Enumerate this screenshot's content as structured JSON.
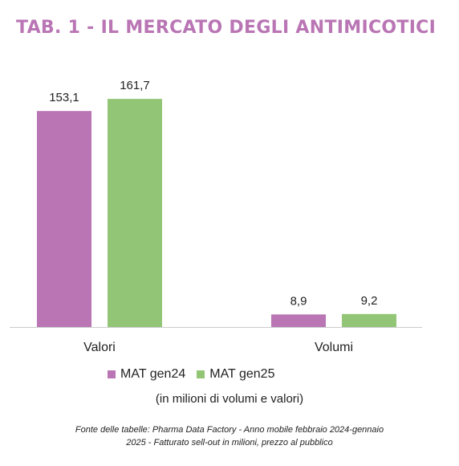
{
  "title": "TAB. 1 - IL MERCATO DEGLI ANTIMICOTICI",
  "colors": {
    "title": "#b975b4",
    "series_a": "#b975b4",
    "series_b": "#92c575",
    "axis": "#cccccc",
    "text": "#222222"
  },
  "chart_data": {
    "type": "bar",
    "categories": [
      "Valori",
      "Volumi"
    ],
    "series": [
      {
        "name": "MAT gen24",
        "values": [
          153.1,
          8.9
        ],
        "labels": [
          "153,1",
          "8,9"
        ]
      },
      {
        "name": "MAT gen25",
        "values": [
          161.7,
          9.2
        ],
        "labels": [
          "161,7",
          "9,2"
        ]
      }
    ],
    "ylim": [
      0,
      172
    ],
    "legend_position": "bottom",
    "grid": false
  },
  "note": "(in milioni di volumi e valori)",
  "source_line1": "Fonte delle tabelle: Pharma Data Factory - Anno mobile febbraio 2024-gennaio",
  "source_line2": "2025 - Fatturato sell-out in milioni, prezzo al pubblico"
}
